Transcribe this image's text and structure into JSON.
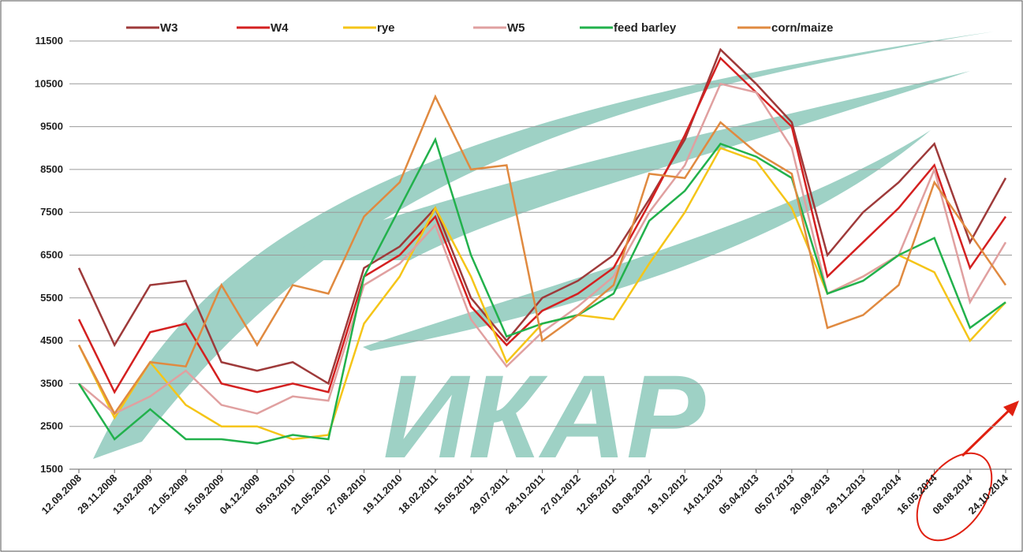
{
  "chart_data": {
    "type": "line",
    "watermark": "ИКАР",
    "categories": [
      "12.09.2008",
      "29.11.2008",
      "13.02.2009",
      "21.05.2009",
      "15.09.2009",
      "04.12.2009",
      "05.03.2010",
      "21.05.2010",
      "27.08.2010",
      "19.11.2010",
      "18.02.2011",
      "15.05.2011",
      "29.07.2011",
      "28.10.2011",
      "27.01.2012",
      "12.05.2012",
      "03.08.2012",
      "19.10.2012",
      "14.01.2013",
      "05.04.2013",
      "05.07.2013",
      "20.09.2013",
      "29.11.2013",
      "28.02.2014",
      "16.05.2014",
      "08.08.2014",
      "24.10.2014"
    ],
    "series": [
      {
        "name": "W3",
        "color": "#9e3a3a",
        "values": [
          6200,
          4400,
          5800,
          5900,
          4000,
          3800,
          4000,
          3500,
          6200,
          6700,
          7600,
          5500,
          4500,
          5500,
          5900,
          6500,
          7800,
          9200,
          11300,
          10500,
          9600,
          6500,
          7500,
          8200,
          9100,
          6800,
          8300
        ]
      },
      {
        "name": "W4",
        "color": "#d42020",
        "values": [
          5000,
          3300,
          4700,
          4900,
          3500,
          3300,
          3500,
          3300,
          6000,
          6500,
          7400,
          5300,
          4400,
          5200,
          5600,
          6200,
          7700,
          9300,
          11100,
          10300,
          9500,
          6000,
          6800,
          7600,
          8600,
          6200,
          7400
        ]
      },
      {
        "name": "rye",
        "color": "#f5c518",
        "values": [
          4400,
          2700,
          4000,
          3000,
          2500,
          2500,
          2200,
          2300,
          4900,
          6000,
          7600,
          6000,
          4000,
          4900,
          5100,
          5000,
          6300,
          7500,
          9000,
          8700,
          7600,
          5600,
          6000,
          6500,
          6100,
          4500,
          5400
        ]
      },
      {
        "name": "W5",
        "color": "#e0a0a0",
        "values": [
          3500,
          2800,
          3200,
          3800,
          3000,
          2800,
          3200,
          3100,
          5800,
          6300,
          7200,
          5000,
          3900,
          4700,
          5300,
          6000,
          7500,
          8600,
          10500,
          10300,
          9000,
          5600,
          6000,
          6500,
          8500,
          5400,
          6800
        ]
      },
      {
        "name": "feed barley",
        "color": "#22b14c",
        "values": [
          3500,
          2200,
          2900,
          2200,
          2200,
          2100,
          2300,
          2200,
          6000,
          7600,
          9200,
          6500,
          4600,
          4900,
          5100,
          5600,
          7300,
          8000,
          9100,
          8800,
          8300,
          5600,
          5900,
          6500,
          6900,
          4800,
          5400
        ]
      },
      {
        "name": "corn/maize",
        "color": "#e08a40",
        "values": [
          4400,
          2800,
          4000,
          3900,
          5800,
          4400,
          5800,
          5600,
          7400,
          8200,
          10200,
          8500,
          8600,
          4500,
          5100,
          5800,
          8400,
          8300,
          9600,
          8900,
          8400,
          4800,
          5100,
          5800,
          8200,
          7000,
          5800
        ]
      }
    ],
    "ylim": [
      1500,
      11500
    ],
    "yticks": [
      1500,
      2500,
      3500,
      4500,
      5500,
      6500,
      7500,
      8500,
      9500,
      10500,
      11500
    ],
    "grid": true
  }
}
